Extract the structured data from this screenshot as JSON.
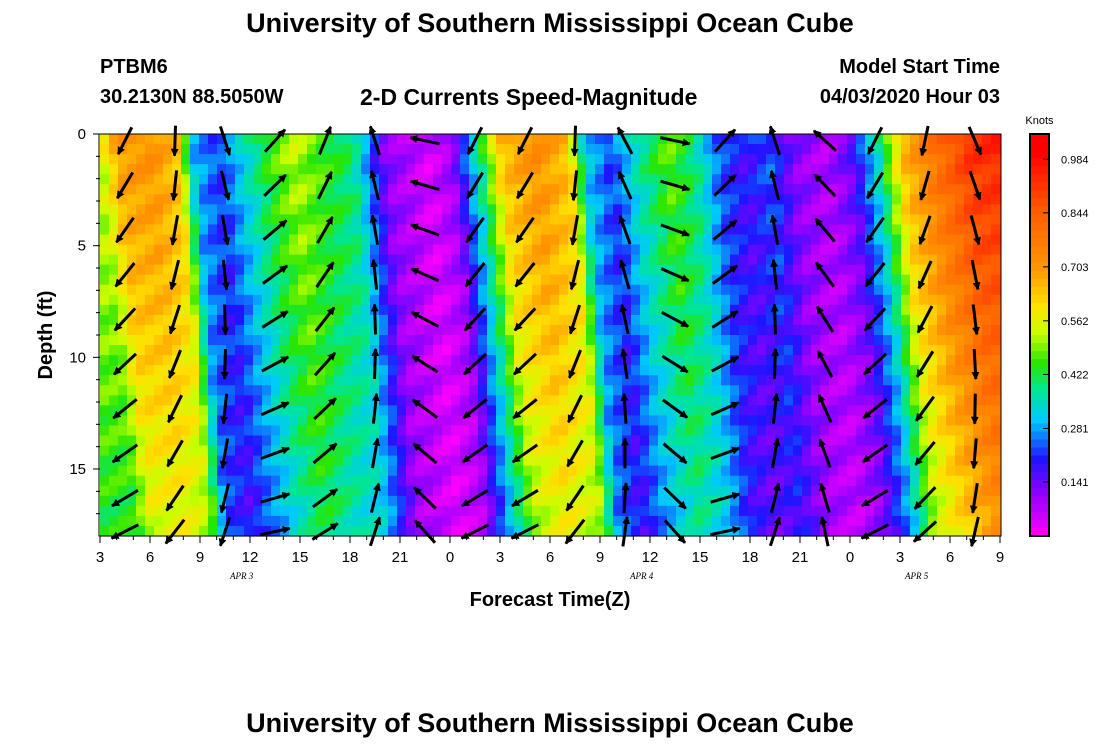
{
  "header": {
    "title": "University of Southern Mississippi Ocean Cube",
    "station_id": "PTBM6",
    "station_coords": "30.2130N 88.5050W",
    "plot_title": "2-D Currents Speed-Magnitude",
    "model_label": "Model Start Time",
    "model_time": "04/03/2020 Hour 03"
  },
  "footer": {
    "title": "University of Southern Mississippi Ocean Cube"
  },
  "chart_data": {
    "type": "heatmap",
    "title": "2-D Currents Speed-Magnitude",
    "xlabel": "Forecast Time(Z)",
    "ylabel": "Depth (ft)",
    "x_hours_since_start": [
      0,
      54
    ],
    "ylim": [
      0,
      18
    ],
    "x_tick_labels": [
      "3",
      "6",
      "9",
      "12",
      "15",
      "18",
      "21",
      "0",
      "3",
      "6",
      "9",
      "12",
      "15",
      "18",
      "21",
      "0",
      "3",
      "6",
      "9"
    ],
    "y_tick_labels": [
      "0",
      "5",
      "10",
      "15"
    ],
    "y_tick_values": [
      0,
      5,
      10,
      15
    ],
    "date_labels": [
      {
        "text": "APR 3",
        "hour": 8.5
      },
      {
        "text": "APR 4",
        "hour": 32.5
      },
      {
        "text": "APR 5",
        "hour": 49
      }
    ],
    "colorbar": {
      "unit": "Knots",
      "tick_labels": [
        "0.984",
        "0.844",
        "0.703",
        "0.562",
        "0.422",
        "0.281",
        "0.141"
      ],
      "min": 0.0,
      "max": 1.05
    },
    "speed_profile": [
      {
        "t": 0,
        "s": 0.55
      },
      {
        "t": 1,
        "s": 0.7
      },
      {
        "t": 3,
        "s": 0.72
      },
      {
        "t": 4.5,
        "s": 0.65
      },
      {
        "t": 5.5,
        "s": 0.3
      },
      {
        "t": 7,
        "s": 0.22
      },
      {
        "t": 8.5,
        "s": 0.34
      },
      {
        "t": 10,
        "s": 0.45
      },
      {
        "t": 11.5,
        "s": 0.53
      },
      {
        "t": 13.5,
        "s": 0.45
      },
      {
        "t": 15,
        "s": 0.4
      },
      {
        "t": 16,
        "s": 0.26
      },
      {
        "t": 17,
        "s": 0.12
      },
      {
        "t": 19.5,
        "s": 0.04
      },
      {
        "t": 21,
        "s": 0.1
      },
      {
        "t": 22.5,
        "s": 0.36
      },
      {
        "t": 24,
        "s": 0.65
      },
      {
        "t": 26,
        "s": 0.73
      },
      {
        "t": 28,
        "s": 0.65
      },
      {
        "t": 29,
        "s": 0.32
      },
      {
        "t": 30.5,
        "s": 0.22
      },
      {
        "t": 32,
        "s": 0.36
      },
      {
        "t": 34,
        "s": 0.48
      },
      {
        "t": 35.5,
        "s": 0.4
      },
      {
        "t": 37,
        "s": 0.24
      },
      {
        "t": 38.5,
        "s": 0.18
      },
      {
        "t": 40,
        "s": 0.24
      },
      {
        "t": 41.5,
        "s": 0.12
      },
      {
        "t": 43.5,
        "s": 0.08
      },
      {
        "t": 45,
        "s": 0.15
      },
      {
        "t": 46.5,
        "s": 0.35
      },
      {
        "t": 48,
        "s": 0.65
      },
      {
        "t": 50,
        "s": 0.8
      },
      {
        "t": 52,
        "s": 0.92
      },
      {
        "t": 54,
        "s": 0.95
      }
    ],
    "vector_hours": [
      1.5,
      4.5,
      7.5,
      10.5,
      13.5,
      16.5,
      19.5,
      22.5,
      25.5,
      28.5,
      31.5,
      34.5,
      37.5,
      40.5,
      43.5,
      46.5,
      49.5,
      52.5
    ],
    "vector_depths": [
      0.3,
      2.3,
      4.3,
      6.3,
      8.3,
      10.3,
      12.3,
      14.3,
      16.3,
      17.8
    ],
    "vector_directions_deg": [
      225,
      200,
      180,
      60,
      40,
      0,
      300,
      225,
      225,
      200,
      350,
      120,
      60,
      0,
      330,
      225,
      210,
      175
    ]
  }
}
